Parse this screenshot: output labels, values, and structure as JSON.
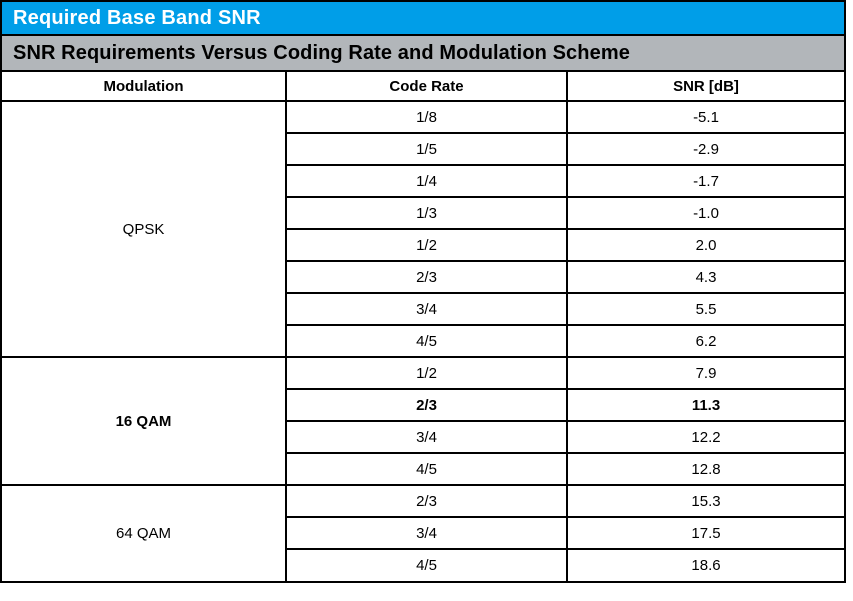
{
  "title_bar": {
    "label": "Required Base Band SNR",
    "bg_color": "#009EE8",
    "text_color": "#FFFFFF"
  },
  "subtitle_bar": {
    "label": "SNR Requirements Versus Coding Rate and Modulation Scheme",
    "bg_color": "#B2B6BA",
    "text_color": "#000000"
  },
  "table": {
    "headers": [
      "Modulation",
      "Code Rate",
      "SNR [dB]"
    ],
    "groups": [
      {
        "modulation": "QPSK",
        "bold": false,
        "rows": [
          {
            "code_rate": "1/8",
            "snr": "-5.1",
            "bold": false
          },
          {
            "code_rate": "1/5",
            "snr": "-2.9",
            "bold": false
          },
          {
            "code_rate": "1/4",
            "snr": "-1.7",
            "bold": false
          },
          {
            "code_rate": "1/3",
            "snr": "-1.0",
            "bold": false
          },
          {
            "code_rate": "1/2",
            "snr": "2.0",
            "bold": false
          },
          {
            "code_rate": "2/3",
            "snr": "4.3",
            "bold": false
          },
          {
            "code_rate": "3/4",
            "snr": "5.5",
            "bold": false
          },
          {
            "code_rate": "4/5",
            "snr": "6.2",
            "bold": false
          }
        ]
      },
      {
        "modulation": "16 QAM",
        "bold": true,
        "rows": [
          {
            "code_rate": "1/2",
            "snr": "7.9",
            "bold": false
          },
          {
            "code_rate": "2/3",
            "snr": "11.3",
            "bold": true
          },
          {
            "code_rate": "3/4",
            "snr": "12.2",
            "bold": false
          },
          {
            "code_rate": "4/5",
            "snr": "12.8",
            "bold": false
          }
        ]
      },
      {
        "modulation": "64 QAM",
        "bold": false,
        "rows": [
          {
            "code_rate": "2/3",
            "snr": "15.3",
            "bold": false
          },
          {
            "code_rate": "3/4",
            "snr": "17.5",
            "bold": false
          },
          {
            "code_rate": "4/5",
            "snr": "18.6",
            "bold": false
          }
        ]
      }
    ]
  }
}
